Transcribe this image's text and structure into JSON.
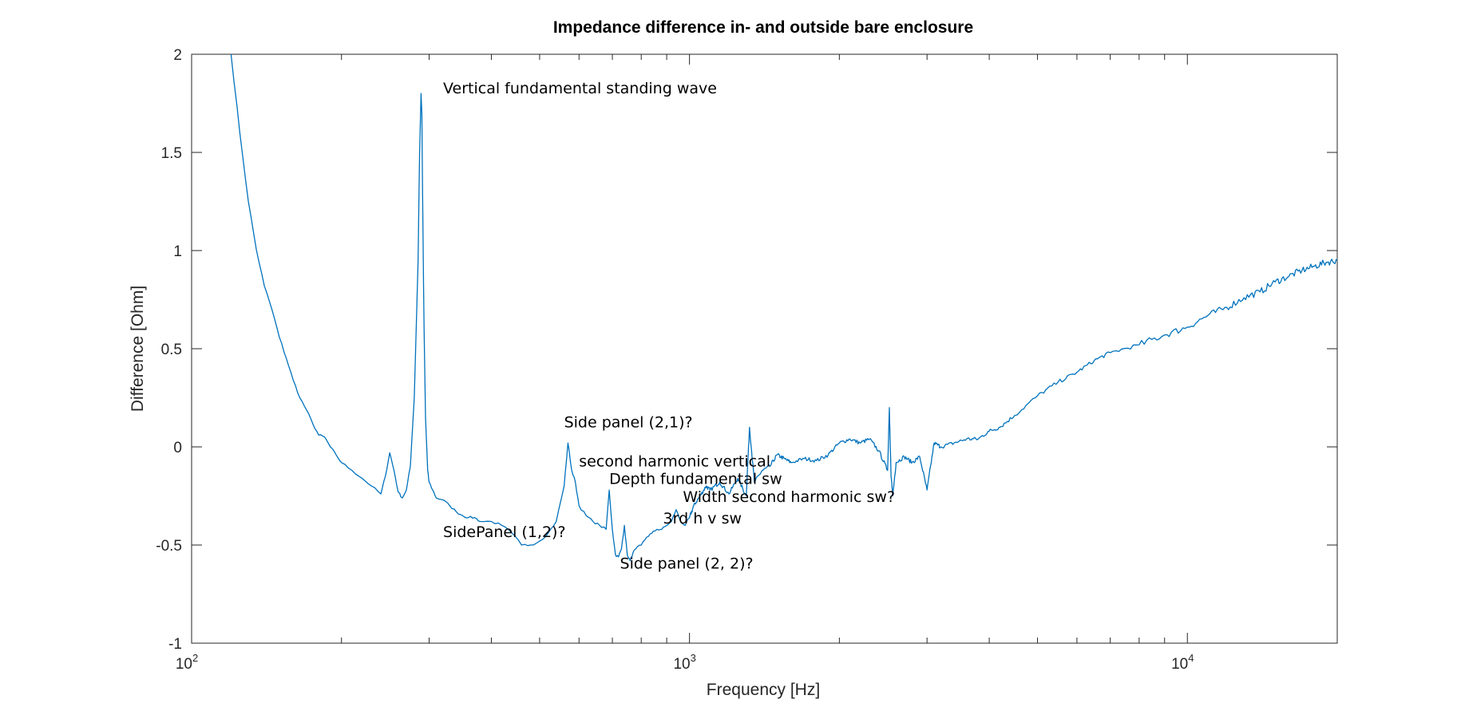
{
  "chart_data": {
    "type": "line",
    "title": "Impedance difference in- and outside bare enclosure",
    "xlabel": "Frequency [Hz]",
    "ylabel": "Difference [Ohm]",
    "xscale": "log",
    "xlim": [
      100,
      20000
    ],
    "ylim": [
      -1,
      2
    ],
    "grid": false,
    "legend": "none",
    "xticks": [
      {
        "value": 100,
        "base": "10",
        "exp": "2"
      },
      {
        "value": 1000,
        "base": "10",
        "exp": "3"
      },
      {
        "value": 10000,
        "base": "10",
        "exp": "4"
      }
    ],
    "yticks": [
      {
        "value": -1,
        "label": "-1"
      },
      {
        "value": -0.5,
        "label": "-0.5"
      },
      {
        "value": 0,
        "label": "0"
      },
      {
        "value": 0.5,
        "label": "0.5"
      },
      {
        "value": 1,
        "label": "1"
      },
      {
        "value": 1.5,
        "label": "1.5"
      },
      {
        "value": 2,
        "label": "2"
      }
    ],
    "series": [
      {
        "color": "#0072BD",
        "x": [
          120,
          125,
          130,
          135,
          140,
          145,
          150,
          155,
          160,
          165,
          170,
          175,
          180,
          185,
          190,
          195,
          200,
          210,
          220,
          230,
          240,
          245,
          250,
          255,
          260,
          265,
          270,
          275,
          280,
          285,
          287,
          289,
          290,
          291,
          293,
          295,
          298,
          300,
          305,
          310,
          320,
          330,
          340,
          350,
          360,
          370,
          380,
          400,
          420,
          440,
          460,
          480,
          500,
          520,
          540,
          560,
          570,
          580,
          590,
          600,
          620,
          640,
          660,
          680,
          690,
          700,
          710,
          720,
          730,
          740,
          750,
          760,
          770,
          780,
          800,
          820,
          840,
          860,
          880,
          900,
          920,
          940,
          960,
          980,
          1000,
          1020,
          1050,
          1080,
          1100,
          1150,
          1200,
          1250,
          1300,
          1320,
          1350,
          1400,
          1450,
          1500,
          1550,
          1600,
          1700,
          1800,
          1900,
          2000,
          2100,
          2200,
          2300,
          2400,
          2500,
          2520,
          2540,
          2560,
          2600,
          2700,
          2800,
          2900,
          3000,
          3100,
          3200,
          3400,
          3600,
          3800,
          4000,
          4200,
          4500,
          5000,
          5500,
          6000,
          6500,
          7000,
          8000,
          9000,
          10000,
          11000,
          12000,
          13000,
          14000,
          15000,
          16000,
          17000,
          18000,
          19000,
          20000
        ],
        "y": [
          2.0,
          1.6,
          1.25,
          1.0,
          0.82,
          0.7,
          0.56,
          0.45,
          0.34,
          0.25,
          0.19,
          0.12,
          0.06,
          0.05,
          0.0,
          -0.04,
          -0.08,
          -0.12,
          -0.16,
          -0.2,
          -0.24,
          -0.15,
          -0.03,
          -0.12,
          -0.23,
          -0.26,
          -0.22,
          -0.1,
          0.25,
          0.95,
          1.5,
          1.8,
          1.7,
          1.3,
          0.6,
          0.15,
          -0.12,
          -0.18,
          -0.22,
          -0.26,
          -0.27,
          -0.3,
          -0.33,
          -0.35,
          -0.36,
          -0.36,
          -0.38,
          -0.38,
          -0.4,
          -0.44,
          -0.5,
          -0.5,
          -0.48,
          -0.44,
          -0.38,
          -0.2,
          0.02,
          -0.12,
          -0.18,
          -0.3,
          -0.35,
          -0.38,
          -0.4,
          -0.42,
          -0.22,
          -0.42,
          -0.55,
          -0.56,
          -0.52,
          -0.4,
          -0.55,
          -0.58,
          -0.54,
          -0.52,
          -0.5,
          -0.46,
          -0.44,
          -0.42,
          -0.42,
          -0.4,
          -0.38,
          -0.32,
          -0.38,
          -0.4,
          -0.36,
          -0.3,
          -0.25,
          -0.2,
          -0.22,
          -0.18,
          -0.24,
          -0.16,
          -0.25,
          0.1,
          -0.18,
          -0.12,
          -0.1,
          -0.04,
          -0.06,
          -0.08,
          -0.06,
          -0.07,
          -0.04,
          0.02,
          0.04,
          0.02,
          0.04,
          -0.02,
          -0.12,
          0.2,
          -0.15,
          -0.25,
          -0.08,
          -0.05,
          -0.08,
          -0.05,
          -0.22,
          0.02,
          0.0,
          0.02,
          0.04,
          0.04,
          0.08,
          0.1,
          0.16,
          0.26,
          0.33,
          0.38,
          0.44,
          0.48,
          0.52,
          0.57,
          0.61,
          0.67,
          0.71,
          0.76,
          0.79,
          0.84,
          0.87,
          0.9,
          0.92,
          0.94,
          0.95
        ]
      }
    ],
    "annotations": [
      {
        "text": "Vertical fundamental standing wave",
        "x": 320,
        "y": 1.8
      },
      {
        "text": "Side panel (2,1)?",
        "x": 560,
        "y": 0.1
      },
      {
        "text": "second harmonic vertical",
        "x": 600,
        "y": -0.1
      },
      {
        "text": "Depth fundamental sw",
        "x": 690,
        "y": -0.19
      },
      {
        "text": "Width second harmonic sw?",
        "x": 970,
        "y": -0.28
      },
      {
        "text": "3rd h v sw",
        "x": 885,
        "y": -0.39
      },
      {
        "text": "SidePanel (1,2)?",
        "x": 320,
        "y": -0.46
      },
      {
        "text": "Side panel (2, 2)?",
        "x": 725,
        "y": -0.62
      }
    ]
  }
}
